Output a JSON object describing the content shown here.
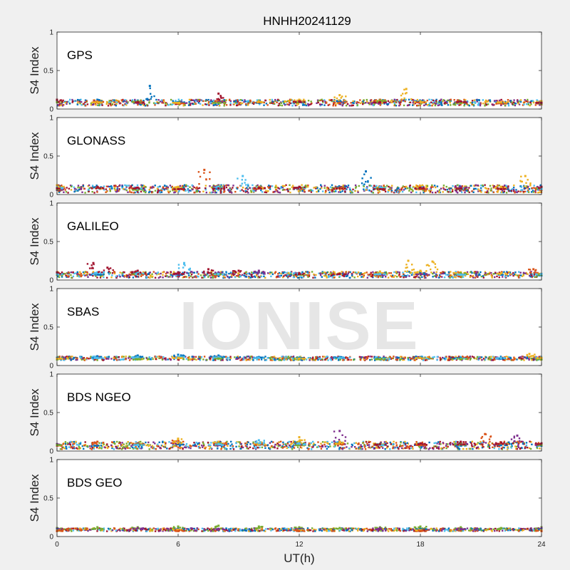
{
  "figure": {
    "title": "HNHH20241129",
    "watermark": "IONISE",
    "background": "#f0f0f0",
    "axes_background": "#ffffff"
  },
  "chart_data": {
    "type": "scatter",
    "title": "HNHH20241129",
    "xlabel": "UT(h)",
    "ylabel": "S4 Index",
    "xlim": [
      0,
      24
    ],
    "ylim": [
      0,
      1
    ],
    "xticks": [
      "0",
      "6",
      "12",
      "18",
      "24"
    ],
    "yticks": [
      "0",
      "0.5",
      "1"
    ],
    "series_colors": [
      "#0072bd",
      "#d95319",
      "#edb120",
      "#7e2f8e",
      "#77ac30",
      "#4dbeee",
      "#a2142f"
    ],
    "panels": [
      {
        "label": "GPS",
        "base": 0.085,
        "spread": 0.04,
        "series": [
          {
            "color": "#0072bd",
            "x": [
              0,
              2,
              4,
              4.6,
              6,
              8,
              10,
              12,
              14,
              16,
              18,
              20,
              22,
              24
            ],
            "y": [
              0.1,
              0.12,
              0.11,
              0.3,
              0.09,
              0.1,
              0.08,
              0.09,
              0.11,
              0.12,
              0.1,
              0.09,
              0.08,
              0.07
            ]
          },
          {
            "color": "#d95319",
            "x": [
              0,
              2,
              4,
              6,
              8,
              10,
              12,
              14,
              16,
              18,
              20,
              22,
              24
            ],
            "y": [
              0.09,
              0.1,
              0.08,
              0.07,
              0.11,
              0.09,
              0.1,
              0.08,
              0.12,
              0.09,
              0.08,
              0.07,
              0.06
            ]
          },
          {
            "color": "#edb120",
            "x": [
              0,
              2,
              4,
              6,
              8,
              10,
              12,
              14,
              16,
              17.3,
              18,
              20,
              22,
              24
            ],
            "y": [
              0.11,
              0.09,
              0.1,
              0.08,
              0.09,
              0.1,
              0.12,
              0.18,
              0.11,
              0.26,
              0.1,
              0.08,
              0.09,
              0.1
            ]
          },
          {
            "color": "#7e2f8e",
            "x": [
              0,
              4,
              8,
              12,
              16,
              20,
              24
            ],
            "y": [
              0.1,
              0.08,
              0.09,
              0.1,
              0.08,
              0.09,
              0.08
            ]
          },
          {
            "color": "#77ac30",
            "x": [
              0,
              4,
              8,
              12,
              16,
              20,
              24
            ],
            "y": [
              0.09,
              0.1,
              0.08,
              0.09,
              0.11,
              0.08,
              0.07
            ]
          },
          {
            "color": "#a2142f",
            "x": [
              0,
              4,
              8,
              12,
              16,
              20,
              24
            ],
            "y": [
              0.12,
              0.09,
              0.2,
              0.1,
              0.09,
              0.1,
              0.08
            ]
          }
        ]
      },
      {
        "label": "GLONASS",
        "base": 0.075,
        "spread": 0.05,
        "series": [
          {
            "color": "#0072bd",
            "x": [
              0,
              2,
              4,
              6,
              8,
              10,
              12,
              14,
              15.3,
              16,
              18,
              20,
              22,
              24
            ],
            "y": [
              0.08,
              0.1,
              0.07,
              0.09,
              0.08,
              0.09,
              0.07,
              0.1,
              0.3,
              0.09,
              0.08,
              0.07,
              0.08,
              0.06
            ]
          },
          {
            "color": "#d95319",
            "x": [
              0,
              2,
              4,
              6,
              7.3,
              8,
              10,
              12,
              14,
              16,
              18,
              20,
              22,
              24
            ],
            "y": [
              0.07,
              0.09,
              0.08,
              0.07,
              0.32,
              0.1,
              0.08,
              0.07,
              0.09,
              0.08,
              0.07,
              0.09,
              0.08,
              0.06
            ]
          },
          {
            "color": "#edb120",
            "x": [
              0,
              2,
              4,
              6,
              8,
              10,
              12,
              14,
              16,
              18,
              20,
              22,
              23.2,
              24
            ],
            "y": [
              0.12,
              0.09,
              0.08,
              0.1,
              0.12,
              0.1,
              0.09,
              0.08,
              0.1,
              0.11,
              0.09,
              0.1,
              0.24,
              0.08
            ]
          },
          {
            "color": "#7e2f8e",
            "x": [
              0,
              4,
              8,
              12,
              16,
              20,
              24
            ],
            "y": [
              0.06,
              0.08,
              0.12,
              0.09,
              0.08,
              0.1,
              0.09
            ]
          },
          {
            "color": "#77ac30",
            "x": [
              0,
              4,
              8,
              12,
              16,
              20,
              24
            ],
            "y": [
              0.07,
              0.06,
              0.11,
              0.1,
              0.08,
              0.07,
              0.09
            ]
          },
          {
            "color": "#4dbeee",
            "x": [
              0,
              4,
              8,
              9.2,
              12,
              16,
              20,
              24
            ],
            "y": [
              0.09,
              0.08,
              0.1,
              0.24,
              0.09,
              0.1,
              0.08,
              0.07
            ]
          },
          {
            "color": "#a2142f",
            "x": [
              0,
              2,
              4,
              6,
              8,
              10,
              12,
              14,
              16,
              18,
              20,
              22,
              24
            ],
            "y": [
              0.08,
              0.1,
              0.09,
              0.07,
              0.08,
              0.09,
              0.1,
              0.08,
              0.07,
              0.09,
              0.08,
              0.07,
              0.1
            ]
          }
        ]
      },
      {
        "label": "GALILEO",
        "base": 0.07,
        "spread": 0.04,
        "series": [
          {
            "color": "#0072bd",
            "x": [
              0,
              2,
              4,
              6,
              8,
              10,
              12,
              14,
              16,
              18,
              20,
              22,
              24
            ],
            "y": [
              0.08,
              0.07,
              0.09,
              0.07,
              0.08,
              0.1,
              0.07,
              0.08,
              0.07,
              0.09,
              0.08,
              0.07,
              0.06
            ]
          },
          {
            "color": "#d95319",
            "x": [
              0,
              4,
              8,
              12,
              16,
              20,
              23.6,
              24
            ],
            "y": [
              0.07,
              0.08,
              0.07,
              0.08,
              0.06,
              0.07,
              0.14,
              0.08
            ]
          },
          {
            "color": "#edb120",
            "x": [
              12,
              14,
              16,
              17.4,
              18,
              18.6,
              20,
              22,
              24
            ],
            "y": [
              0.08,
              0.09,
              0.11,
              0.25,
              0.12,
              0.24,
              0.1,
              0.09,
              0.08
            ]
          },
          {
            "color": "#7e2f8e",
            "x": [
              6,
              8,
              10,
              12,
              14,
              16,
              18
            ],
            "y": [
              0.09,
              0.1,
              0.12,
              0.09,
              0.08,
              0.07,
              0.08
            ]
          },
          {
            "color": "#77ac30",
            "x": [
              0,
              4,
              8,
              12,
              16,
              20,
              24
            ],
            "y": [
              0.07,
              0.09,
              0.08,
              0.07,
              0.08,
              0.09,
              0.07
            ]
          },
          {
            "color": "#4dbeee",
            "x": [
              0,
              2,
              4,
              6.3,
              8,
              12,
              16,
              20,
              24
            ],
            "y": [
              0.08,
              0.1,
              0.09,
              0.22,
              0.08,
              0.09,
              0.08,
              0.07,
              0.08
            ]
          },
          {
            "color": "#a2142f",
            "x": [
              0,
              1.8,
              2.5,
              4,
              6,
              7.5,
              9,
              12,
              14
            ],
            "y": [
              0.1,
              0.22,
              0.16,
              0.12,
              0.1,
              0.14,
              0.12,
              0.09,
              0.08
            ]
          }
        ]
      },
      {
        "label": "SBAS",
        "base": 0.095,
        "spread": 0.025,
        "series": [
          {
            "color": "#0072bd",
            "x": [
              0,
              2,
              4,
              6,
              8,
              10,
              12,
              14,
              16,
              18,
              20,
              22,
              24
            ],
            "y": [
              0.1,
              0.12,
              0.13,
              0.14,
              0.13,
              0.11,
              0.1,
              0.11,
              0.1,
              0.11,
              0.1,
              0.09,
              0.1
            ]
          },
          {
            "color": "#4dbeee",
            "x": [
              0,
              2,
              4,
              6,
              8,
              10,
              12,
              14,
              16,
              18,
              20,
              22,
              24
            ],
            "y": [
              0.09,
              0.1,
              0.11,
              0.12,
              0.11,
              0.1,
              0.09,
              0.1,
              0.09,
              0.1,
              0.09,
              0.1,
              0.09
            ]
          },
          {
            "color": "#77ac30",
            "x": [
              0,
              4,
              8,
              12,
              16,
              20,
              24
            ],
            "y": [
              0.08,
              0.08,
              0.09,
              0.08,
              0.08,
              0.08,
              0.08
            ]
          },
          {
            "color": "#edb120",
            "x": [
              0,
              6,
              12,
              18,
              23.4,
              24
            ],
            "y": [
              0.09,
              0.1,
              0.09,
              0.1,
              0.15,
              0.1
            ]
          }
        ]
      },
      {
        "label": "BDS NGEO",
        "base": 0.075,
        "spread": 0.05,
        "series": [
          {
            "color": "#0072bd",
            "x": [
              0,
              2,
              4,
              6,
              8,
              10,
              12,
              14,
              16,
              18,
              20,
              22,
              24
            ],
            "y": [
              0.08,
              0.07,
              0.09,
              0.1,
              0.08,
              0.09,
              0.1,
              0.12,
              0.09,
              0.08,
              0.07,
              0.08,
              0.07
            ]
          },
          {
            "color": "#d95319",
            "x": [
              0,
              2,
              4,
              6,
              8,
              10,
              12,
              14,
              16,
              18,
              20,
              21.2,
              22,
              24
            ],
            "y": [
              0.07,
              0.12,
              0.1,
              0.14,
              0.11,
              0.09,
              0.08,
              0.1,
              0.09,
              0.08,
              0.1,
              0.22,
              0.11,
              0.09
            ]
          },
          {
            "color": "#edb120",
            "x": [
              4,
              6,
              8,
              10,
              12,
              14,
              16
            ],
            "y": [
              0.1,
              0.16,
              0.12,
              0.1,
              0.18,
              0.12,
              0.09
            ]
          },
          {
            "color": "#7e2f8e",
            "x": [
              0,
              4,
              8,
              12,
              14,
              16,
              20,
              22.8,
              24
            ],
            "y": [
              0.09,
              0.1,
              0.08,
              0.09,
              0.26,
              0.08,
              0.1,
              0.2,
              0.09
            ]
          },
          {
            "color": "#77ac30",
            "x": [
              0,
              4,
              8,
              12,
              16,
              20,
              24
            ],
            "y": [
              0.08,
              0.09,
              0.1,
              0.08,
              0.09,
              0.1,
              0.08
            ]
          },
          {
            "color": "#4dbeee",
            "x": [
              4,
              8,
              10,
              12,
              16
            ],
            "y": [
              0.08,
              0.09,
              0.14,
              0.1,
              0.08
            ]
          },
          {
            "color": "#a2142f",
            "x": [
              16,
              18,
              20,
              22,
              24
            ],
            "y": [
              0.09,
              0.1,
              0.12,
              0.11,
              0.1
            ]
          }
        ]
      },
      {
        "label": "BDS GEO",
        "base": 0.09,
        "spread": 0.02,
        "series": [
          {
            "color": "#77ac30",
            "x": [
              0,
              2,
              4,
              6,
              8,
              10,
              12,
              14,
              16,
              18,
              20,
              22,
              24
            ],
            "y": [
              0.11,
              0.12,
              0.12,
              0.13,
              0.14,
              0.13,
              0.12,
              0.11,
              0.12,
              0.13,
              0.12,
              0.11,
              0.12
            ]
          },
          {
            "color": "#7e2f8e",
            "x": [
              0,
              4,
              8,
              12,
              16,
              20,
              24
            ],
            "y": [
              0.1,
              0.11,
              0.1,
              0.1,
              0.11,
              0.1,
              0.11
            ]
          },
          {
            "color": "#0072bd",
            "x": [
              0,
              6,
              12,
              18,
              24
            ],
            "y": [
              0.09,
              0.1,
              0.09,
              0.1,
              0.09
            ]
          },
          {
            "color": "#edb120",
            "x": [
              0,
              6,
              12,
              18,
              24
            ],
            "y": [
              0.08,
              0.09,
              0.08,
              0.08,
              0.08
            ]
          },
          {
            "color": "#d95319",
            "x": [
              0,
              6,
              12,
              18,
              24
            ],
            "y": [
              0.07,
              0.07,
              0.07,
              0.07,
              0.07
            ]
          }
        ]
      }
    ]
  }
}
